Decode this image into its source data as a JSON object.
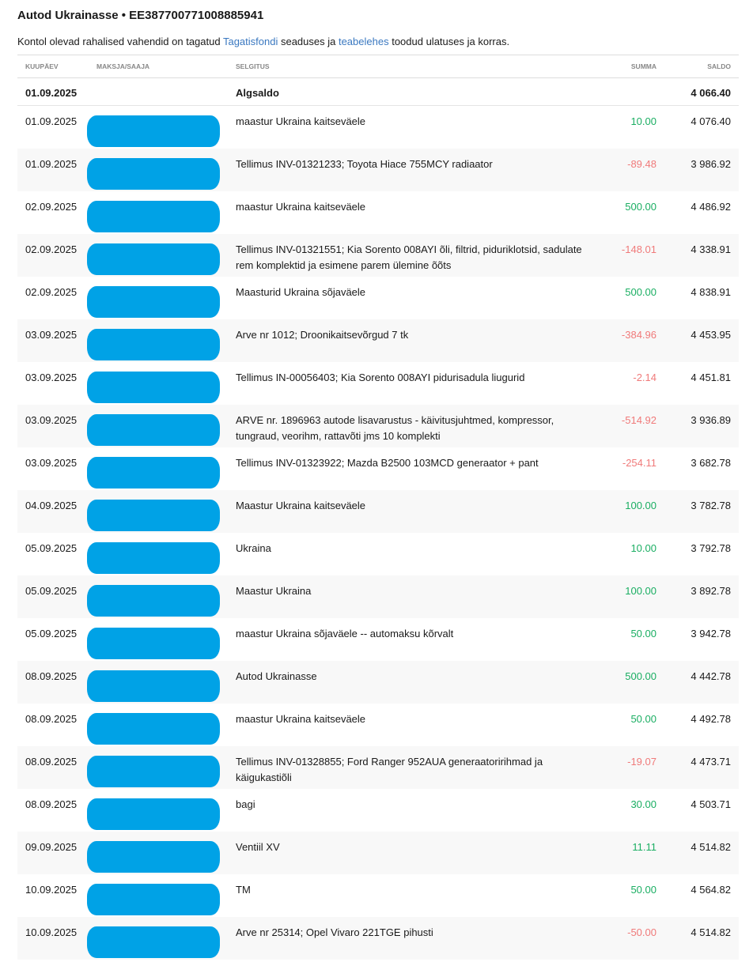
{
  "header": {
    "title": "Autod Ukrainasse • EE387700771008885941",
    "note_prefix": "Kontol olevad rahalised vahendid on tagatud ",
    "link1": "Tagatisfondi",
    "note_mid": " seaduses ja ",
    "link2": "teabelehes",
    "note_suffix": " toodud ulatuses ja korras."
  },
  "columns": {
    "date": "KUUPÄEV",
    "payer": "MAKSJA/SAAJA",
    "desc": "SELGITUS",
    "amount": "SUMMA",
    "balance": "SALDO"
  },
  "opening": {
    "date": "01.09.2025",
    "desc": "Algsaldo",
    "balance": "4 066.40"
  },
  "colors": {
    "positive": "#1aae62",
    "negative": "#f07a7a",
    "redaction": "#00a2e6"
  },
  "rows": [
    {
      "date": "01.09.2025",
      "desc": "maastur Ukraina kaitseväele",
      "amount": "10.00",
      "balance": "4 076.40"
    },
    {
      "date": "01.09.2025",
      "desc": "Tellimus INV-01321233; Toyota Hiace 755MCY radiaator",
      "amount": "-89.48",
      "balance": "3 986.92"
    },
    {
      "date": "02.09.2025",
      "desc": "maastur Ukraina kaitseväele",
      "amount": "500.00",
      "balance": "4 486.92"
    },
    {
      "date": "02.09.2025",
      "desc": "Tellimus INV-01321551; Kia Sorento 008AYI õli, filtrid, piduriklotsid, sadulate rem komplektid ja esimene parem ülemine õõts",
      "amount": "-148.01",
      "balance": "4 338.91"
    },
    {
      "date": "02.09.2025",
      "desc": "Maasturid Ukraina sõjaväele",
      "amount": "500.00",
      "balance": "4 838.91"
    },
    {
      "date": "03.09.2025",
      "desc": "Arve nr 1012; Droonikaitsevõrgud 7 tk",
      "amount": "-384.96",
      "balance": "4 453.95"
    },
    {
      "date": "03.09.2025",
      "desc": "Tellimus IN-00056403; Kia Sorento 008AYI pidurisadula liugurid",
      "amount": "-2.14",
      "balance": "4 451.81"
    },
    {
      "date": "03.09.2025",
      "desc": "ARVE nr. 1896963 autode lisavarustus - käivitusjuhtmed, kompressor, tungraud, veorihm, rattavõti jms 10 komplekti",
      "amount": "-514.92",
      "balance": "3 936.89"
    },
    {
      "date": "03.09.2025",
      "desc": "Tellimus INV-01323922; Mazda B2500 103MCD generaator + pant",
      "amount": "-254.11",
      "balance": "3 682.78"
    },
    {
      "date": "04.09.2025",
      "desc": "Maastur Ukraina kaitseväele",
      "amount": "100.00",
      "balance": "3 782.78"
    },
    {
      "date": "05.09.2025",
      "desc": "Ukraina",
      "amount": "10.00",
      "balance": "3 792.78"
    },
    {
      "date": "05.09.2025",
      "desc": "Maastur Ukraina",
      "amount": "100.00",
      "balance": "3 892.78"
    },
    {
      "date": "05.09.2025",
      "desc": "maastur Ukraina sõjaväele -- automaksu kõrvalt",
      "amount": "50.00",
      "balance": "3 942.78"
    },
    {
      "date": "08.09.2025",
      "desc": "Autod Ukrainasse",
      "amount": "500.00",
      "balance": "4 442.78"
    },
    {
      "date": "08.09.2025",
      "desc": "maastur Ukraina kaitseväele",
      "amount": "50.00",
      "balance": "4 492.78"
    },
    {
      "date": "08.09.2025",
      "desc": "Tellimus INV-01328855; Ford Ranger 952AUA generaatoririhmad ja käigukastiõli",
      "amount": "-19.07",
      "balance": "4 473.71"
    },
    {
      "date": "08.09.2025",
      "desc": "bagi",
      "amount": "30.00",
      "balance": "4 503.71"
    },
    {
      "date": "09.09.2025",
      "desc": "Ventiil XV",
      "amount": "11.11",
      "balance": "4 514.82"
    },
    {
      "date": "10.09.2025",
      "desc": "TM",
      "amount": "50.00",
      "balance": "4 564.82"
    },
    {
      "date": "10.09.2025",
      "desc": "Arve nr 25314; Opel Vivaro 221TGE pihusti",
      "amount": "-50.00",
      "balance": "4 514.82"
    }
  ]
}
